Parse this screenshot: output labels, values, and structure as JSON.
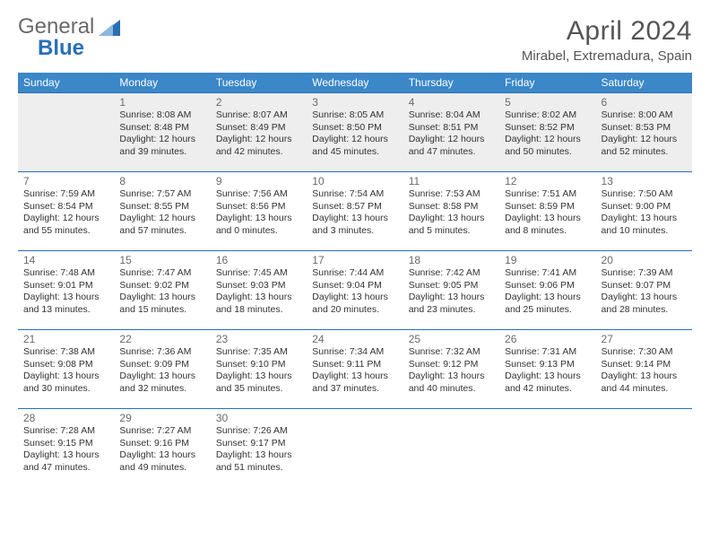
{
  "logo": {
    "text1": "General",
    "text2": "Blue"
  },
  "title": {
    "month": "April 2024",
    "location": "Mirabel, Extremadura, Spain"
  },
  "colors": {
    "header_bg": "#3b87c8",
    "header_border": "#2a6fb5",
    "row_border": "#2a6fb5",
    "shade_bg": "#eeeeee",
    "text": "#333333",
    "logo_gray": "#6a6a6a",
    "logo_blue": "#2a6fb5",
    "title_color": "#555555"
  },
  "weekdays": [
    "Sunday",
    "Monday",
    "Tuesday",
    "Wednesday",
    "Thursday",
    "Friday",
    "Saturday"
  ],
  "weeks": [
    [
      null,
      {
        "d": "1",
        "sr": "8:08 AM",
        "ss": "8:48 PM",
        "dl": "12 hours and 39 minutes."
      },
      {
        "d": "2",
        "sr": "8:07 AM",
        "ss": "8:49 PM",
        "dl": "12 hours and 42 minutes."
      },
      {
        "d": "3",
        "sr": "8:05 AM",
        "ss": "8:50 PM",
        "dl": "12 hours and 45 minutes."
      },
      {
        "d": "4",
        "sr": "8:04 AM",
        "ss": "8:51 PM",
        "dl": "12 hours and 47 minutes."
      },
      {
        "d": "5",
        "sr": "8:02 AM",
        "ss": "8:52 PM",
        "dl": "12 hours and 50 minutes."
      },
      {
        "d": "6",
        "sr": "8:00 AM",
        "ss": "8:53 PM",
        "dl": "12 hours and 52 minutes."
      }
    ],
    [
      {
        "d": "7",
        "sr": "7:59 AM",
        "ss": "8:54 PM",
        "dl": "12 hours and 55 minutes."
      },
      {
        "d": "8",
        "sr": "7:57 AM",
        "ss": "8:55 PM",
        "dl": "12 hours and 57 minutes."
      },
      {
        "d": "9",
        "sr": "7:56 AM",
        "ss": "8:56 PM",
        "dl": "13 hours and 0 minutes."
      },
      {
        "d": "10",
        "sr": "7:54 AM",
        "ss": "8:57 PM",
        "dl": "13 hours and 3 minutes."
      },
      {
        "d": "11",
        "sr": "7:53 AM",
        "ss": "8:58 PM",
        "dl": "13 hours and 5 minutes."
      },
      {
        "d": "12",
        "sr": "7:51 AM",
        "ss": "8:59 PM",
        "dl": "13 hours and 8 minutes."
      },
      {
        "d": "13",
        "sr": "7:50 AM",
        "ss": "9:00 PM",
        "dl": "13 hours and 10 minutes."
      }
    ],
    [
      {
        "d": "14",
        "sr": "7:48 AM",
        "ss": "9:01 PM",
        "dl": "13 hours and 13 minutes."
      },
      {
        "d": "15",
        "sr": "7:47 AM",
        "ss": "9:02 PM",
        "dl": "13 hours and 15 minutes."
      },
      {
        "d": "16",
        "sr": "7:45 AM",
        "ss": "9:03 PM",
        "dl": "13 hours and 18 minutes."
      },
      {
        "d": "17",
        "sr": "7:44 AM",
        "ss": "9:04 PM",
        "dl": "13 hours and 20 minutes."
      },
      {
        "d": "18",
        "sr": "7:42 AM",
        "ss": "9:05 PM",
        "dl": "13 hours and 23 minutes."
      },
      {
        "d": "19",
        "sr": "7:41 AM",
        "ss": "9:06 PM",
        "dl": "13 hours and 25 minutes."
      },
      {
        "d": "20",
        "sr": "7:39 AM",
        "ss": "9:07 PM",
        "dl": "13 hours and 28 minutes."
      }
    ],
    [
      {
        "d": "21",
        "sr": "7:38 AM",
        "ss": "9:08 PM",
        "dl": "13 hours and 30 minutes."
      },
      {
        "d": "22",
        "sr": "7:36 AM",
        "ss": "9:09 PM",
        "dl": "13 hours and 32 minutes."
      },
      {
        "d": "23",
        "sr": "7:35 AM",
        "ss": "9:10 PM",
        "dl": "13 hours and 35 minutes."
      },
      {
        "d": "24",
        "sr": "7:34 AM",
        "ss": "9:11 PM",
        "dl": "13 hours and 37 minutes."
      },
      {
        "d": "25",
        "sr": "7:32 AM",
        "ss": "9:12 PM",
        "dl": "13 hours and 40 minutes."
      },
      {
        "d": "26",
        "sr": "7:31 AM",
        "ss": "9:13 PM",
        "dl": "13 hours and 42 minutes."
      },
      {
        "d": "27",
        "sr": "7:30 AM",
        "ss": "9:14 PM",
        "dl": "13 hours and 44 minutes."
      }
    ],
    [
      {
        "d": "28",
        "sr": "7:28 AM",
        "ss": "9:15 PM",
        "dl": "13 hours and 47 minutes."
      },
      {
        "d": "29",
        "sr": "7:27 AM",
        "ss": "9:16 PM",
        "dl": "13 hours and 49 minutes."
      },
      {
        "d": "30",
        "sr": "7:26 AM",
        "ss": "9:17 PM",
        "dl": "13 hours and 51 minutes."
      },
      null,
      null,
      null,
      null
    ]
  ],
  "labels": {
    "sunrise": "Sunrise:",
    "sunset": "Sunset:",
    "daylight": "Daylight:"
  }
}
